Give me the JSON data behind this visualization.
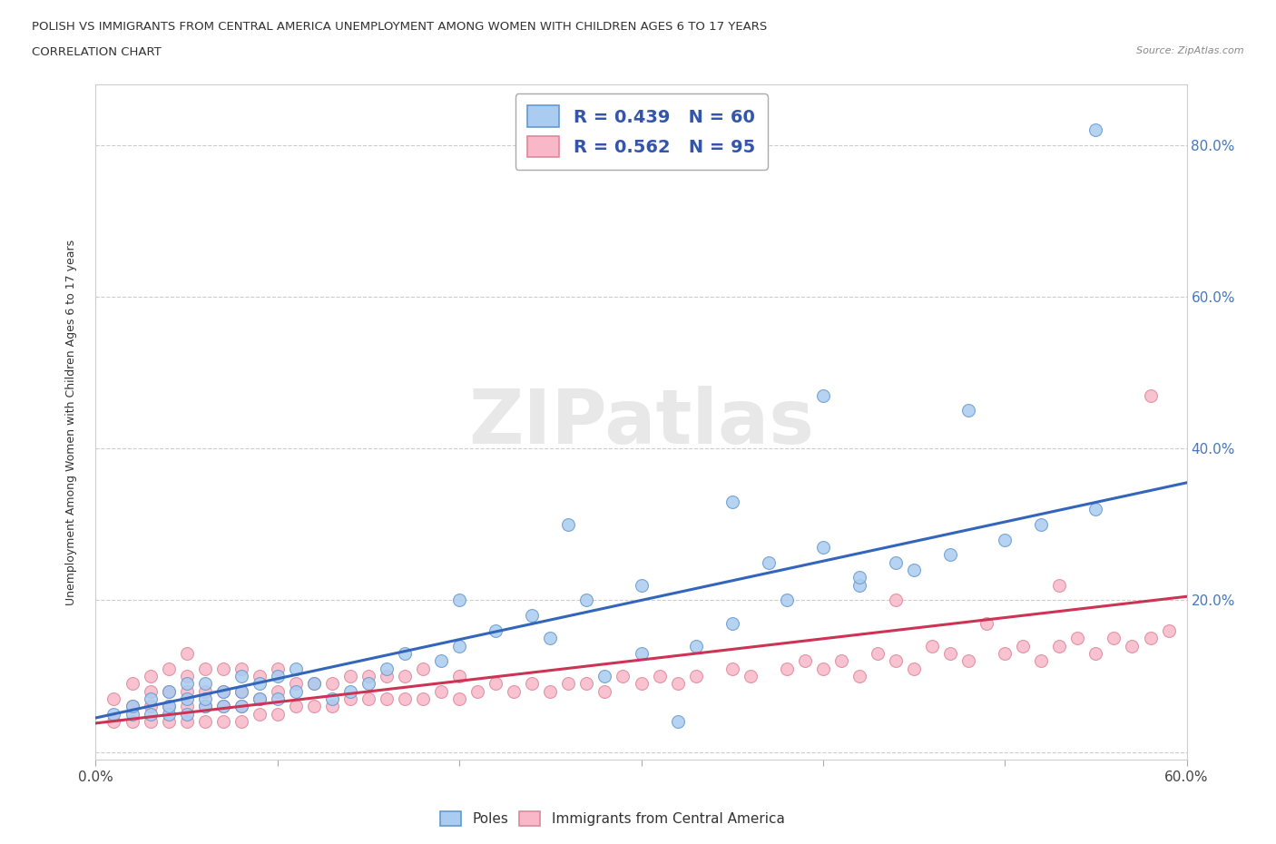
{
  "title_line1": "POLISH VS IMMIGRANTS FROM CENTRAL AMERICA UNEMPLOYMENT AMONG WOMEN WITH CHILDREN AGES 6 TO 17 YEARS",
  "title_line2": "CORRELATION CHART",
  "source": "Source: ZipAtlas.com",
  "ylabel": "Unemployment Among Women with Children Ages 6 to 17 years",
  "xlim": [
    0.0,
    0.6
  ],
  "ylim": [
    -0.01,
    0.88
  ],
  "xticks": [
    0.0,
    0.1,
    0.2,
    0.3,
    0.4,
    0.5,
    0.6
  ],
  "yticks_right": [
    0.0,
    0.2,
    0.4,
    0.6,
    0.8
  ],
  "ytick_labels_right": [
    "",
    "20.0%",
    "40.0%",
    "60.0%",
    "80.0%"
  ],
  "poles_color": "#aaccf0",
  "poles_edge_color": "#6699cc",
  "immigrants_color": "#f8b8c8",
  "immigrants_edge_color": "#dd8899",
  "line_poles_color": "#3366bb",
  "line_immigrants_color": "#cc3355",
  "R_poles": 0.439,
  "N_poles": 60,
  "R_immigrants": 0.562,
  "N_immigrants": 95,
  "legend_text_color": "#3355aa",
  "watermark": "ZIPatlas",
  "background_color": "#ffffff",
  "grid_color": "#cccccc",
  "poles_x": [
    0.01,
    0.02,
    0.02,
    0.03,
    0.03,
    0.04,
    0.04,
    0.04,
    0.05,
    0.05,
    0.05,
    0.06,
    0.06,
    0.06,
    0.07,
    0.07,
    0.08,
    0.08,
    0.08,
    0.09,
    0.09,
    0.1,
    0.1,
    0.11,
    0.11,
    0.12,
    0.13,
    0.14,
    0.15,
    0.16,
    0.17,
    0.19,
    0.2,
    0.22,
    0.24,
    0.25,
    0.27,
    0.3,
    0.32,
    0.35,
    0.37,
    0.4,
    0.42,
    0.45,
    0.47,
    0.5,
    0.52,
    0.55,
    0.3,
    0.35,
    0.38,
    0.42,
    0.44,
    0.28,
    0.33,
    0.26,
    0.2,
    0.55,
    0.48,
    0.4
  ],
  "poles_y": [
    0.05,
    0.05,
    0.06,
    0.05,
    0.07,
    0.05,
    0.06,
    0.08,
    0.05,
    0.07,
    0.09,
    0.06,
    0.07,
    0.09,
    0.06,
    0.08,
    0.06,
    0.08,
    0.1,
    0.07,
    0.09,
    0.07,
    0.1,
    0.08,
    0.11,
    0.09,
    0.07,
    0.08,
    0.09,
    0.11,
    0.13,
    0.12,
    0.14,
    0.16,
    0.18,
    0.15,
    0.2,
    0.22,
    0.04,
    0.33,
    0.25,
    0.27,
    0.22,
    0.24,
    0.26,
    0.28,
    0.3,
    0.32,
    0.13,
    0.17,
    0.2,
    0.23,
    0.25,
    0.1,
    0.14,
    0.3,
    0.2,
    0.82,
    0.45,
    0.47
  ],
  "immigrants_x": [
    0.01,
    0.01,
    0.02,
    0.02,
    0.02,
    0.03,
    0.03,
    0.03,
    0.03,
    0.04,
    0.04,
    0.04,
    0.04,
    0.05,
    0.05,
    0.05,
    0.05,
    0.05,
    0.06,
    0.06,
    0.06,
    0.06,
    0.07,
    0.07,
    0.07,
    0.07,
    0.08,
    0.08,
    0.08,
    0.08,
    0.09,
    0.09,
    0.09,
    0.1,
    0.1,
    0.1,
    0.11,
    0.11,
    0.12,
    0.12,
    0.13,
    0.13,
    0.14,
    0.14,
    0.15,
    0.15,
    0.16,
    0.16,
    0.17,
    0.17,
    0.18,
    0.18,
    0.19,
    0.2,
    0.2,
    0.21,
    0.22,
    0.23,
    0.24,
    0.25,
    0.26,
    0.27,
    0.28,
    0.29,
    0.3,
    0.31,
    0.32,
    0.33,
    0.35,
    0.36,
    0.38,
    0.39,
    0.4,
    0.41,
    0.42,
    0.43,
    0.44,
    0.45,
    0.46,
    0.47,
    0.48,
    0.5,
    0.51,
    0.52,
    0.53,
    0.54,
    0.55,
    0.56,
    0.57,
    0.58,
    0.59,
    0.44,
    0.49,
    0.53,
    0.58
  ],
  "immigrants_y": [
    0.04,
    0.07,
    0.04,
    0.06,
    0.09,
    0.04,
    0.06,
    0.08,
    0.1,
    0.04,
    0.06,
    0.08,
    0.11,
    0.04,
    0.06,
    0.08,
    0.1,
    0.13,
    0.04,
    0.06,
    0.08,
    0.11,
    0.04,
    0.06,
    0.08,
    0.11,
    0.04,
    0.06,
    0.08,
    0.11,
    0.05,
    0.07,
    0.1,
    0.05,
    0.08,
    0.11,
    0.06,
    0.09,
    0.06,
    0.09,
    0.06,
    0.09,
    0.07,
    0.1,
    0.07,
    0.1,
    0.07,
    0.1,
    0.07,
    0.1,
    0.07,
    0.11,
    0.08,
    0.07,
    0.1,
    0.08,
    0.09,
    0.08,
    0.09,
    0.08,
    0.09,
    0.09,
    0.08,
    0.1,
    0.09,
    0.1,
    0.09,
    0.1,
    0.11,
    0.1,
    0.11,
    0.12,
    0.11,
    0.12,
    0.1,
    0.13,
    0.12,
    0.11,
    0.14,
    0.13,
    0.12,
    0.13,
    0.14,
    0.12,
    0.14,
    0.15,
    0.13,
    0.15,
    0.14,
    0.15,
    0.16,
    0.2,
    0.17,
    0.22,
    0.47
  ]
}
